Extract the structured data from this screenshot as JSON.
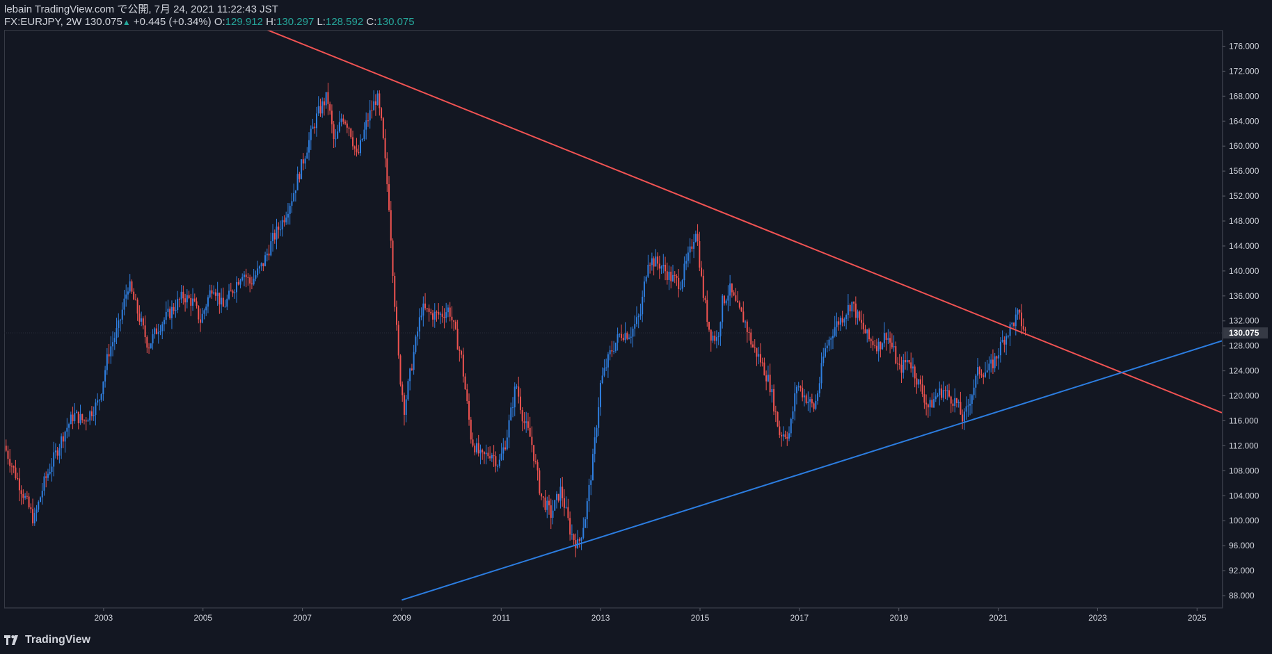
{
  "header": {
    "publish_line": "lebain TradingView.com で公開, 7月 24, 2021 11:22:43 JST",
    "symbol": "FX:EURJPY, 2W",
    "last": "130.075",
    "arrow": "▲",
    "change": "+0.445 (+0.34%)",
    "o_label": "O:",
    "o_value": "129.912",
    "h_label": "H:",
    "h_value": "130.297",
    "l_label": "L:",
    "l_value": "128.592",
    "c_label": "C:",
    "c_value": "130.075"
  },
  "brand": {
    "name": "TradingView",
    "logo_icon": "tradingview-logo-icon"
  },
  "colors": {
    "background": "#131722",
    "up_candle": "#2f7fe0",
    "down_candle": "#ef5350",
    "resistance_line": "#f15353",
    "support_line": "#2c7de0",
    "axis_text": "#d1d4dc",
    "price_label_bg": "#363a45"
  },
  "chart_data": {
    "type": "candlestick",
    "symbol": "FX:EURJPY",
    "interval": "2W",
    "x_axis": {
      "range": [
        2001.0,
        2025.5
      ],
      "ticks": [
        "2003",
        "2005",
        "2007",
        "2009",
        "2011",
        "2013",
        "2015",
        "2017",
        "2019",
        "2021",
        "2023",
        "2025"
      ]
    },
    "y_axis": {
      "range": [
        86.0,
        178.5
      ],
      "position": "right",
      "ticks": [
        "88.000",
        "92.000",
        "96.000",
        "100.000",
        "104.000",
        "108.000",
        "112.000",
        "116.000",
        "120.000",
        "124.000",
        "128.000",
        "132.000",
        "136.000",
        "140.000",
        "144.000",
        "148.000",
        "152.000",
        "156.000",
        "160.000",
        "164.000",
        "168.000",
        "172.000",
        "176.000"
      ]
    },
    "last_price_label": "130.075",
    "last_price": 130.075,
    "price_path": [
      [
        2001.0,
        112
      ],
      [
        2001.2,
        108
      ],
      [
        2001.4,
        104
      ],
      [
        2001.6,
        100
      ],
      [
        2001.8,
        106
      ],
      [
        2002.0,
        110
      ],
      [
        2002.2,
        114
      ],
      [
        2002.4,
        117
      ],
      [
        2002.6,
        116
      ],
      [
        2002.9,
        119
      ],
      [
        2003.1,
        127
      ],
      [
        2003.3,
        131
      ],
      [
        2003.5,
        138
      ],
      [
        2003.7,
        133
      ],
      [
        2003.9,
        128
      ],
      [
        2004.1,
        131
      ],
      [
        2004.3,
        133
      ],
      [
        2004.6,
        136
      ],
      [
        2004.8,
        135
      ],
      [
        2004.95,
        132
      ],
      [
        2005.2,
        138
      ],
      [
        2005.4,
        134
      ],
      [
        2005.6,
        137
      ],
      [
        2005.8,
        140
      ],
      [
        2005.95,
        138
      ],
      [
        2006.2,
        141
      ],
      [
        2006.4,
        145
      ],
      [
        2006.6,
        148
      ],
      [
        2006.8,
        152
      ],
      [
        2006.95,
        156
      ],
      [
        2007.1,
        160
      ],
      [
        2007.3,
        165
      ],
      [
        2007.5,
        168
      ],
      [
        2007.65,
        160
      ],
      [
        2007.8,
        165
      ],
      [
        2007.95,
        163
      ],
      [
        2008.1,
        158
      ],
      [
        2008.3,
        164
      ],
      [
        2008.5,
        168
      ],
      [
        2008.6,
        163
      ],
      [
        2008.75,
        150
      ],
      [
        2008.85,
        136
      ],
      [
        2008.95,
        124
      ],
      [
        2009.05,
        118
      ],
      [
        2009.2,
        125
      ],
      [
        2009.4,
        134
      ],
      [
        2009.6,
        133
      ],
      [
        2009.8,
        133
      ],
      [
        2009.95,
        134
      ],
      [
        2010.2,
        126
      ],
      [
        2010.4,
        113
      ],
      [
        2010.6,
        110
      ],
      [
        2010.8,
        111
      ],
      [
        2010.95,
        109
      ],
      [
        2011.1,
        113
      ],
      [
        2011.3,
        122
      ],
      [
        2011.45,
        116
      ],
      [
        2011.6,
        113
      ],
      [
        2011.8,
        104
      ],
      [
        2012.0,
        101
      ],
      [
        2012.2,
        105
      ],
      [
        2012.4,
        98
      ],
      [
        2012.55,
        96
      ],
      [
        2012.7,
        101
      ],
      [
        2012.85,
        110
      ],
      [
        2013.0,
        122
      ],
      [
        2013.2,
        127
      ],
      [
        2013.4,
        130
      ],
      [
        2013.6,
        130
      ],
      [
        2013.8,
        133
      ],
      [
        2013.95,
        142
      ],
      [
        2014.2,
        141
      ],
      [
        2014.4,
        139
      ],
      [
        2014.6,
        138
      ],
      [
        2014.8,
        143
      ],
      [
        2014.92,
        147
      ],
      [
        2015.05,
        137
      ],
      [
        2015.2,
        130
      ],
      [
        2015.35,
        129
      ],
      [
        2015.45,
        135
      ],
      [
        2015.6,
        137
      ],
      [
        2015.75,
        134
      ],
      [
        2015.9,
        132
      ],
      [
        2016.05,
        128
      ],
      [
        2016.2,
        126
      ],
      [
        2016.4,
        122
      ],
      [
        2016.6,
        114
      ],
      [
        2016.8,
        114
      ],
      [
        2016.95,
        122
      ],
      [
        2017.1,
        120
      ],
      [
        2017.3,
        118
      ],
      [
        2017.4,
        122
      ],
      [
        2017.5,
        127
      ],
      [
        2017.7,
        131
      ],
      [
        2017.9,
        133
      ],
      [
        2018.05,
        135
      ],
      [
        2018.2,
        132
      ],
      [
        2018.4,
        129
      ],
      [
        2018.6,
        128
      ],
      [
        2018.75,
        130
      ],
      [
        2018.9,
        127
      ],
      [
        2019.0,
        124
      ],
      [
        2019.2,
        126
      ],
      [
        2019.4,
        122
      ],
      [
        2019.6,
        118
      ],
      [
        2019.75,
        120
      ],
      [
        2019.9,
        121
      ],
      [
        2020.0,
        120
      ],
      [
        2020.15,
        119
      ],
      [
        2020.3,
        116
      ],
      [
        2020.45,
        120
      ],
      [
        2020.6,
        124
      ],
      [
        2020.8,
        124
      ],
      [
        2020.95,
        126
      ],
      [
        2021.1,
        129
      ],
      [
        2021.25,
        131
      ],
      [
        2021.4,
        133
      ],
      [
        2021.55,
        130
      ]
    ],
    "trendlines": [
      {
        "name": "resistance",
        "from": [
          2001.0,
          195.5
        ],
        "to": [
          2025.5,
          117.3
        ]
      },
      {
        "name": "support",
        "from": [
          2009.0,
          87.3
        ],
        "to": [
          2025.5,
          128.8
        ]
      }
    ]
  }
}
